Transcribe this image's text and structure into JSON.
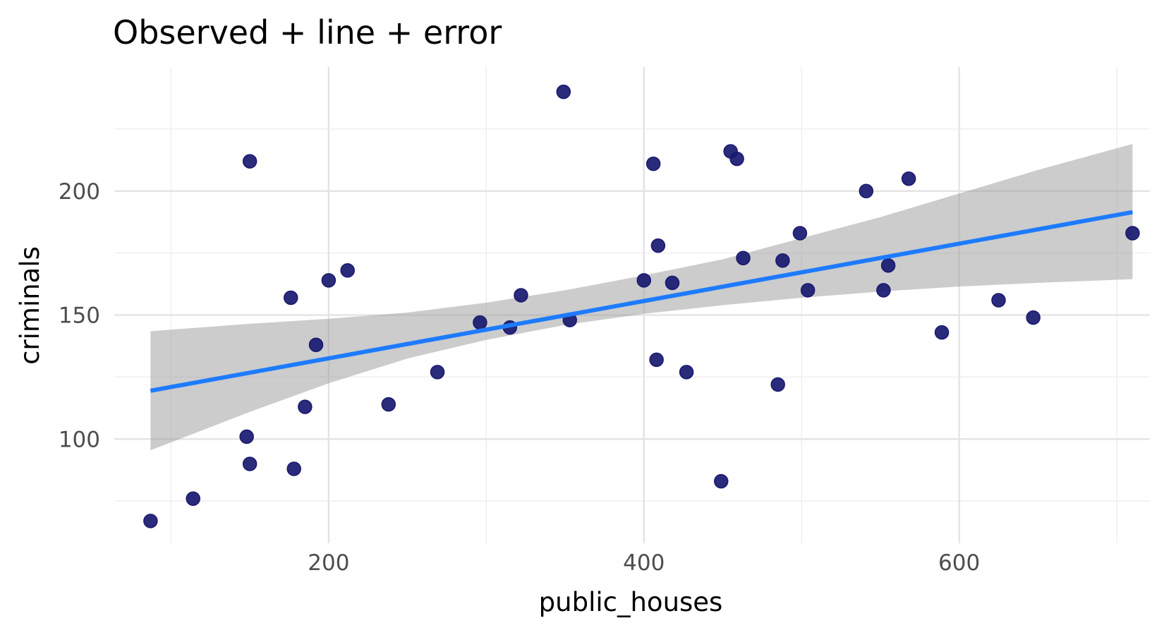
{
  "chart_data": {
    "type": "scatter",
    "title": "Observed + line + error",
    "xlabel": "public_houses",
    "ylabel": "criminals",
    "xlim": [
      64,
      721
    ],
    "ylim": [
      58,
      250
    ],
    "x_ticks": [
      200,
      400,
      600
    ],
    "x_minor_ticks": [
      100,
      300,
      500,
      700
    ],
    "y_ticks": [
      100,
      150,
      200
    ],
    "y_minor_ticks": [
      75,
      125,
      175,
      225
    ],
    "grid": true,
    "point_color": "#191970",
    "line_color": "#1e7bff",
    "ribbon_color": "#999999",
    "points": [
      {
        "x": 87,
        "y": 67
      },
      {
        "x": 114,
        "y": 76
      },
      {
        "x": 150,
        "y": 212
      },
      {
        "x": 148,
        "y": 101
      },
      {
        "x": 150,
        "y": 90
      },
      {
        "x": 176,
        "y": 157
      },
      {
        "x": 178,
        "y": 88
      },
      {
        "x": 185,
        "y": 113
      },
      {
        "x": 192,
        "y": 138
      },
      {
        "x": 200,
        "y": 164
      },
      {
        "x": 212,
        "y": 168
      },
      {
        "x": 238,
        "y": 114
      },
      {
        "x": 269,
        "y": 127
      },
      {
        "x": 296,
        "y": 147
      },
      {
        "x": 315,
        "y": 145
      },
      {
        "x": 322,
        "y": 158
      },
      {
        "x": 349,
        "y": 240
      },
      {
        "x": 353,
        "y": 148
      },
      {
        "x": 400,
        "y": 164
      },
      {
        "x": 406,
        "y": 211
      },
      {
        "x": 408,
        "y": 132
      },
      {
        "x": 409,
        "y": 178
      },
      {
        "x": 418,
        "y": 163
      },
      {
        "x": 427,
        "y": 127
      },
      {
        "x": 449,
        "y": 83
      },
      {
        "x": 455,
        "y": 216
      },
      {
        "x": 459,
        "y": 213
      },
      {
        "x": 463,
        "y": 173
      },
      {
        "x": 485,
        "y": 122
      },
      {
        "x": 488,
        "y": 172
      },
      {
        "x": 499,
        "y": 183
      },
      {
        "x": 504,
        "y": 160
      },
      {
        "x": 541,
        "y": 200
      },
      {
        "x": 552,
        "y": 160
      },
      {
        "x": 555,
        "y": 170
      },
      {
        "x": 568,
        "y": 205
      },
      {
        "x": 589,
        "y": 143
      },
      {
        "x": 625,
        "y": 156
      },
      {
        "x": 647,
        "y": 149
      },
      {
        "x": 710,
        "y": 183
      }
    ],
    "fit_line": {
      "x": [
        87,
        710
      ],
      "y": [
        119.5,
        191.5
      ]
    },
    "error_band": {
      "x": [
        87,
        150,
        200,
        250,
        300,
        350,
        400,
        450,
        500,
        550,
        600,
        650,
        710
      ],
      "lower": [
        95.5,
        111,
        122.5,
        132.5,
        140,
        146,
        150.5,
        154,
        157,
        159.5,
        161.5,
        163,
        164.5
      ],
      "upper": [
        143.5,
        146.5,
        148.5,
        151,
        155,
        160,
        166,
        172.5,
        181,
        189.5,
        199,
        208.5,
        219
      ]
    }
  }
}
